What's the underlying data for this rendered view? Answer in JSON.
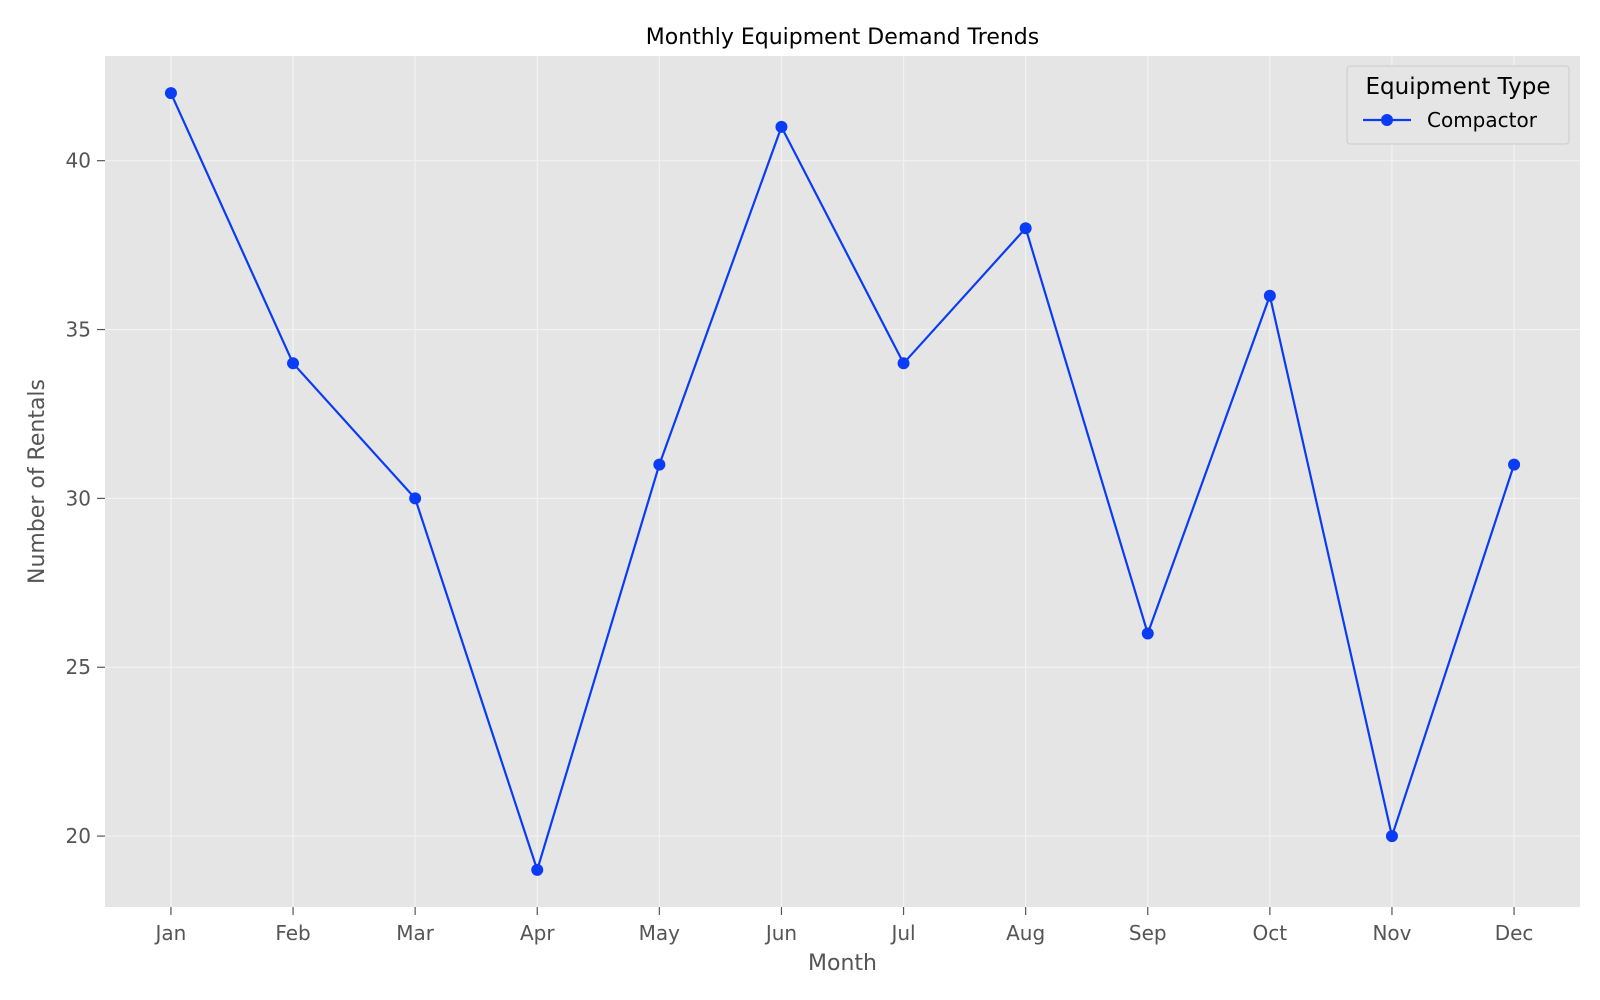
{
  "chart_data": {
    "type": "line",
    "title": "Monthly Equipment Demand Trends",
    "xlabel": "Month",
    "ylabel": "Number of Rentals",
    "categories": [
      "Jan",
      "Feb",
      "Mar",
      "Apr",
      "May",
      "Jun",
      "Jul",
      "Aug",
      "Sep",
      "Oct",
      "Nov",
      "Dec"
    ],
    "ylim": [
      17.9,
      43.1
    ],
    "yticks": [
      20,
      25,
      30,
      35,
      40
    ],
    "grid": true,
    "legend": {
      "title": "Equipment Type",
      "placement": "top-right"
    },
    "series": [
      {
        "name": "Compactor",
        "color": "#0a3cf5",
        "marker": "circle",
        "values": [
          42,
          34,
          30,
          19,
          31,
          41,
          34,
          38,
          26,
          36,
          20,
          31
        ]
      }
    ]
  },
  "colors": {
    "plot_background": "#e5e5e5",
    "grid": "#f2f2f2",
    "tick_text": "#555555"
  }
}
